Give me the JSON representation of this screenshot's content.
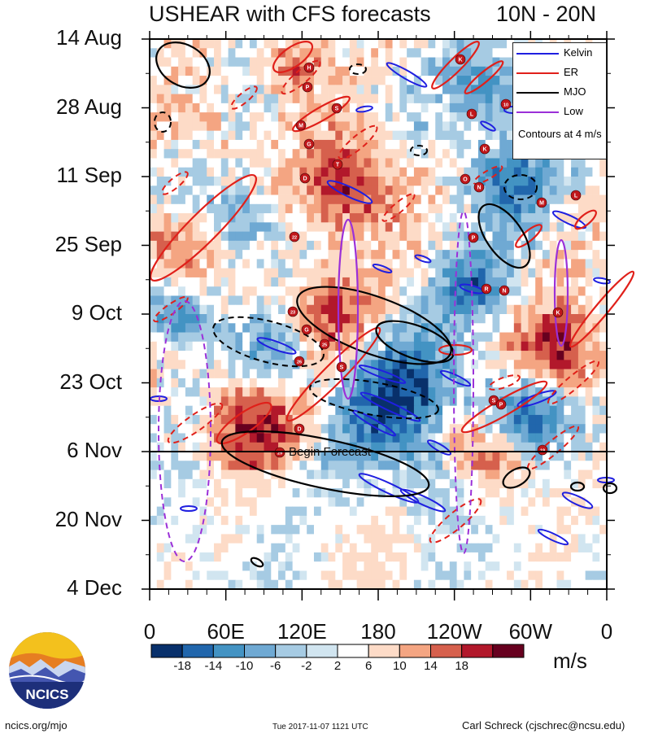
{
  "title": {
    "left": "USHEAR with CFS forecasts",
    "right": "10N - 20N"
  },
  "chart_data": {
    "type": "heatmap",
    "variable": "USHEAR",
    "title": "USHEAR with CFS forecasts",
    "subtitle": "10N - 20N",
    "xlabel": "Longitude",
    "ylabel": "Date",
    "x_ticks": [
      "0",
      "60E",
      "120E",
      "180",
      "120W",
      "60W",
      "0"
    ],
    "y_ticks": [
      "14 Aug",
      "28 Aug",
      "11 Sep",
      "25 Sep",
      "9 Oct",
      "23 Oct",
      "6 Nov",
      "20 Nov",
      "4 Dec"
    ],
    "xlim": [
      0,
      360
    ],
    "forecast_start": "6 Nov",
    "forecast_label": "Begin Forecast",
    "colorbar": {
      "labels": [
        "-18",
        "-14",
        "-10",
        "-6",
        "-2",
        "2",
        "6",
        "10",
        "14",
        "18"
      ],
      "colors": [
        "#08306b",
        "#2166ac",
        "#4393c3",
        "#6fa9d3",
        "#a6cbe3",
        "#d1e5f0",
        "#ffffff",
        "#fddbc7",
        "#f4a582",
        "#d6604d",
        "#b2182b",
        "#67001f"
      ],
      "units": "m/s"
    },
    "legend": {
      "entries": [
        {
          "name": "Kelvin",
          "color": "#1f1fe0"
        },
        {
          "name": "ER",
          "color": "#e0201a"
        },
        {
          "name": "MJO",
          "color": "#000000"
        },
        {
          "name": "Low",
          "color": "#9b30d8"
        }
      ],
      "note": "Contours at 4 m/s",
      "position": "top-right"
    },
    "storms": [
      "H",
      "K",
      "P",
      "S",
      "10",
      "L",
      "M",
      "G",
      "K",
      "D",
      "T",
      "O",
      "N",
      "M",
      "L",
      "22",
      "P",
      "R",
      "N",
      "23",
      "G",
      "K",
      "25",
      "26",
      "S",
      "S",
      "P",
      "D",
      "29",
      "19"
    ]
  },
  "footer": {
    "left": "ncics.org/mjo",
    "middle": "Tue 2017-11-07 1121 UTC",
    "right": "Carl Schreck (cjschrec@ncsu.edu)"
  },
  "logo": {
    "text": "NCICS"
  }
}
